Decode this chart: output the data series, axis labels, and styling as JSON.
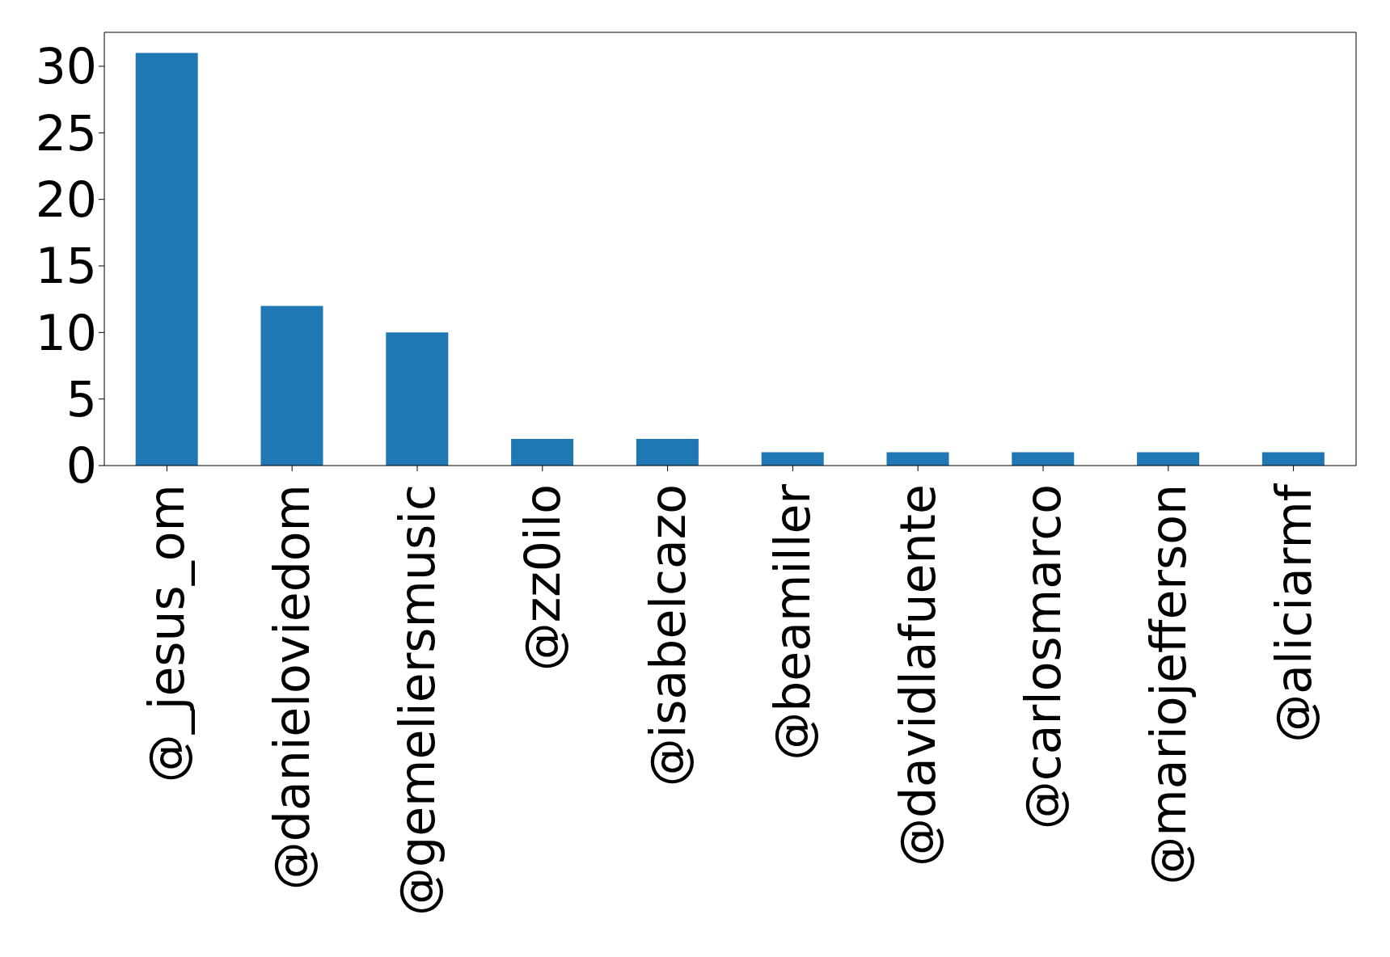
{
  "chart_data": {
    "type": "bar",
    "categories": [
      "@_jesus_om",
      "@danieloviedom",
      "@gemeliersmusic",
      "@zz0ilo",
      "@isabelcazo",
      "@beamiller",
      "@davidlafuente",
      "@carlosmarco",
      "@mariojefferson",
      "@aliciarmf"
    ],
    "values": [
      31,
      12,
      10,
      2,
      2,
      1,
      1,
      1,
      1,
      1
    ],
    "color": "#1f77b4",
    "ylim": [
      0,
      32.55
    ],
    "yticks": [
      0,
      5,
      10,
      15,
      20,
      25,
      30
    ],
    "grid": false
  }
}
